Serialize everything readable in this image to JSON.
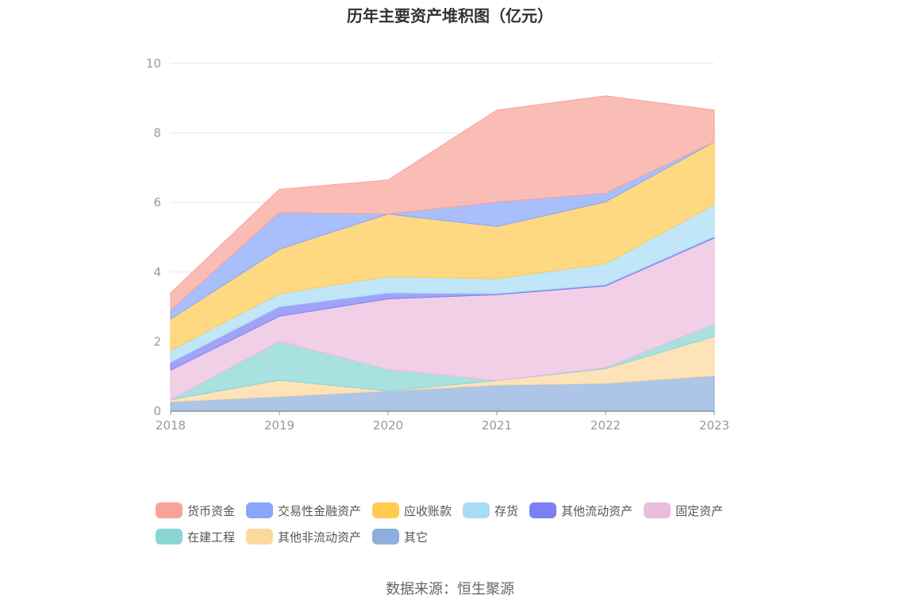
{
  "chart_data": {
    "type": "area",
    "stacked": true,
    "title": "历年主要资产堆积图（亿元）",
    "x": [
      "2018",
      "2019",
      "2020",
      "2021",
      "2022",
      "2023"
    ],
    "ylim": [
      0,
      10
    ],
    "yticks": [
      "0",
      "2",
      "4",
      "6",
      "8",
      "10"
    ],
    "grid": true,
    "legend_position": "bottom",
    "series": [
      {
        "name": "其它",
        "color": "#8eaedc",
        "values": [
          0.27,
          0.42,
          0.58,
          0.75,
          0.8,
          1.02
        ]
      },
      {
        "name": "其他非流动资产",
        "color": "#fdd89e",
        "values": [
          0.06,
          0.47,
          0.0,
          0.13,
          0.42,
          1.13
        ]
      },
      {
        "name": "在建工程",
        "color": "#88d6d4",
        "values": [
          0.0,
          1.11,
          0.62,
          0.0,
          0.03,
          0.35
        ]
      },
      {
        "name": "固定资产",
        "color": "#ebbddd",
        "values": [
          0.85,
          0.73,
          2.03,
          2.47,
          2.35,
          2.48
        ]
      },
      {
        "name": "其他流动资产",
        "color": "#7b80f4",
        "values": [
          0.22,
          0.27,
          0.17,
          0.03,
          0.04,
          0.04
        ]
      },
      {
        "name": "存货",
        "color": "#a8dcf5",
        "values": [
          0.35,
          0.38,
          0.47,
          0.43,
          0.6,
          0.92
        ]
      },
      {
        "name": "应收账款",
        "color": "#ffcb51",
        "values": [
          0.9,
          1.28,
          1.8,
          1.5,
          1.78,
          1.8
        ]
      },
      {
        "name": "交易性金融资产",
        "color": "#88a6fb",
        "values": [
          0.25,
          1.05,
          0.0,
          0.7,
          0.25,
          0.0
        ]
      },
      {
        "name": "货币资金",
        "color": "#f8a39a",
        "values": [
          0.5,
          0.67,
          0.98,
          2.65,
          2.8,
          0.92
        ]
      }
    ]
  },
  "legend_rows": [
    [
      "货币资金",
      "交易性金融资产",
      "应收账款",
      "存货",
      "其他流动资产",
      "固定资产"
    ],
    [
      "在建工程",
      "其他非流动资产",
      "其它"
    ]
  ],
  "source": "数据来源：恒生聚源"
}
